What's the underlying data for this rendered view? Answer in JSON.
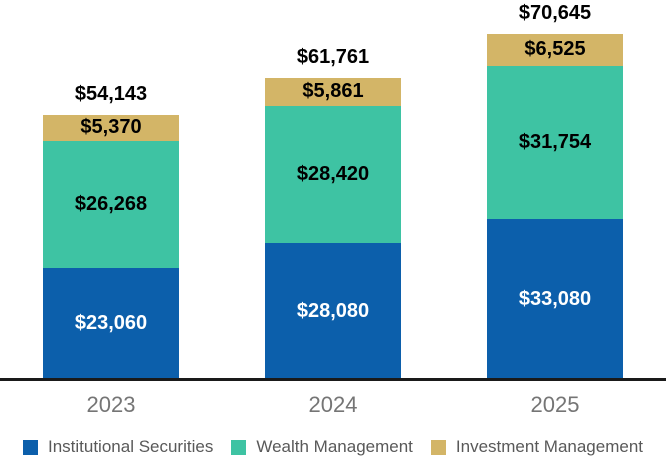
{
  "chart_data": {
    "type": "bar",
    "variant": "stacked-column",
    "title": "",
    "categories": [
      "2023",
      "2024",
      "2025"
    ],
    "series": [
      {
        "name": "Institutional Securities",
        "color": "#0C5FAB",
        "text_color": "#FFFFFF",
        "values": [
          23060,
          28080,
          33080
        ],
        "value_labels": [
          "$23,060",
          "$28,080",
          "$33,080"
        ]
      },
      {
        "name": "Wealth Management",
        "color": "#3EC3A3",
        "text_color": "#000000",
        "values": [
          26268,
          28420,
          31754
        ],
        "value_labels": [
          "$26,268",
          "$28,420",
          "$31,754"
        ]
      },
      {
        "name": "Investment Management",
        "color": "#D3B567",
        "text_color": "#000000",
        "values": [
          5370,
          5861,
          6525
        ],
        "value_labels": [
          "$5,370",
          "$5,861",
          "$6,525"
        ]
      }
    ],
    "stack_order_bottom_to_top": [
      "Institutional Securities",
      "Wealth Management",
      "Investment Management"
    ],
    "totals": [
      54143,
      61761,
      70645
    ],
    "total_labels": [
      "$54,143",
      "$61,761",
      "$70,645"
    ],
    "legend_position": "bottom",
    "grid": false
  },
  "colors": {
    "axis_line": "#1A1A1A",
    "category_label": "#757575",
    "legend_label": "#595959",
    "background": "#FFFFFF"
  }
}
